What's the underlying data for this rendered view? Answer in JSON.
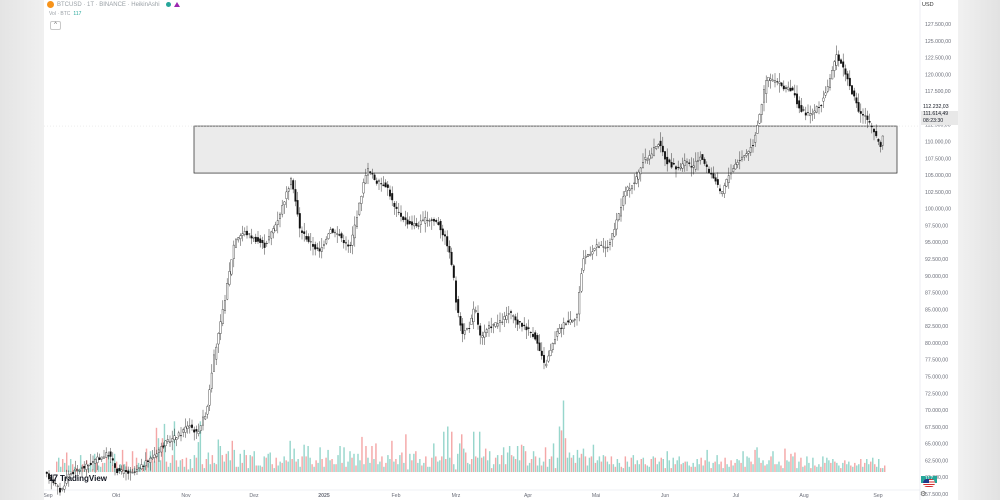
{
  "header": {
    "symbol_line": "BTCUSD · 1T · BINANCE · HeikinAshi",
    "volume_label": "Vol · BTC",
    "volume_value": "117",
    "collapse_glyph": "^"
  },
  "currency": "USD",
  "brand": "TradingView",
  "colors": {
    "up": "#26a69a",
    "down": "#ef5350",
    "candle": "#111111",
    "zone_fill": "#ebebeb",
    "coin": "#f7931a"
  },
  "chart_data": {
    "type": "candlestick",
    "style": "HeikinAshi",
    "timeframe": "1T",
    "symbol": "BTCUSD",
    "exchange": "BINANCE",
    "y_axis": {
      "min": 57500,
      "max": 127500,
      "ticks": [
        127500,
        125000,
        122500,
        120000,
        117500,
        115000,
        112500,
        110000,
        107500,
        105000,
        102500,
        100000,
        97500,
        95000,
        92500,
        90000,
        87500,
        85000,
        82500,
        80000,
        77500,
        75000,
        72500,
        70000,
        67500,
        65000,
        62500,
        60000,
        57500
      ],
      "tick_labels": [
        "127.500,00",
        "125.000,00",
        "122.500,00",
        "120.000,00",
        "117.500,00",
        "115.000,00",
        "112.500,00",
        "110.000,00",
        "107.500,00",
        "105.000,00",
        "102.500,00",
        "100.000,00",
        "97.500,00",
        "95.000,00",
        "92.500,00",
        "90.000,00",
        "87.500,00",
        "85.000,00",
        "82.500,00",
        "80.000,00",
        "77.500,00",
        "75.000,00",
        "72.500,00",
        "70.000,00",
        "67.500,00",
        "65.000,00",
        "62.500,00",
        "60.000,00",
        "57.500,00"
      ]
    },
    "x_axis": {
      "labels": [
        "Sep",
        "Okt",
        "Nov",
        "Dez",
        "2025",
        "Feb",
        "Mrz",
        "Apr",
        "Mai",
        "Jun",
        "Jul",
        "Aug",
        "Sep"
      ]
    },
    "price_labels": {
      "high": "112.232,03",
      "current": "111.614,49",
      "countdown": "08:23:30"
    },
    "zone": {
      "top": 112300,
      "bottom": 105300
    },
    "price_series": [
      [
        0,
        60500
      ],
      [
        8,
        59500
      ],
      [
        16,
        57800
      ],
      [
        24,
        60500
      ],
      [
        40,
        61500
      ],
      [
        56,
        63000
      ],
      [
        64,
        63500
      ],
      [
        72,
        61000
      ],
      [
        88,
        60500
      ],
      [
        104,
        62500
      ],
      [
        120,
        65000
      ],
      [
        136,
        66500
      ],
      [
        144,
        68000
      ],
      [
        152,
        66500
      ],
      [
        162,
        70000
      ],
      [
        168,
        77000
      ],
      [
        176,
        83000
      ],
      [
        184,
        90000
      ],
      [
        190,
        95500
      ],
      [
        200,
        96500
      ],
      [
        210,
        95500
      ],
      [
        220,
        94500
      ],
      [
        232,
        98000
      ],
      [
        240,
        101500
      ],
      [
        247,
        104500
      ],
      [
        255,
        97000
      ],
      [
        265,
        95000
      ],
      [
        275,
        93500
      ],
      [
        285,
        97000
      ],
      [
        295,
        96000
      ],
      [
        305,
        94000
      ],
      [
        315,
        101000
      ],
      [
        322,
        106000
      ],
      [
        332,
        104000
      ],
      [
        342,
        103500
      ],
      [
        350,
        100000
      ],
      [
        362,
        98000
      ],
      [
        372,
        97500
      ],
      [
        382,
        98500
      ],
      [
        393,
        98000
      ],
      [
        402,
        95000
      ],
      [
        408,
        91000
      ],
      [
        412,
        85000
      ],
      [
        418,
        81500
      ],
      [
        425,
        82500
      ],
      [
        430,
        85500
      ],
      [
        436,
        80500
      ],
      [
        445,
        82500
      ],
      [
        455,
        83000
      ],
      [
        465,
        84500
      ],
      [
        472,
        83000
      ],
      [
        480,
        82500
      ],
      [
        490,
        81000
      ],
      [
        500,
        76500
      ],
      [
        505,
        78500
      ],
      [
        512,
        81500
      ],
      [
        520,
        83000
      ],
      [
        532,
        84000
      ],
      [
        538,
        92500
      ],
      [
        545,
        93500
      ],
      [
        553,
        94500
      ],
      [
        562,
        94000
      ],
      [
        570,
        97000
      ],
      [
        580,
        102500
      ],
      [
        590,
        104000
      ],
      [
        598,
        107000
      ],
      [
        606,
        108000
      ],
      [
        613,
        110000
      ],
      [
        622,
        107000
      ],
      [
        632,
        106000
      ],
      [
        642,
        107000
      ],
      [
        648,
        106000
      ],
      [
        656,
        108000
      ],
      [
        662,
        106000
      ],
      [
        670,
        104500
      ],
      [
        676,
        102000
      ],
      [
        684,
        105000
      ],
      [
        692,
        107000
      ],
      [
        700,
        108000
      ],
      [
        708,
        109500
      ],
      [
        716,
        115000
      ],
      [
        722,
        119500
      ],
      [
        730,
        119000
      ],
      [
        740,
        118000
      ],
      [
        748,
        117500
      ],
      [
        756,
        114500
      ],
      [
        766,
        114000
      ],
      [
        776,
        115500
      ],
      [
        786,
        119500
      ],
      [
        792,
        123000
      ],
      [
        800,
        120500
      ],
      [
        808,
        117000
      ],
      [
        814,
        114500
      ],
      [
        822,
        113500
      ],
      [
        830,
        111000
      ],
      [
        836,
        109500
      ],
      [
        840,
        111600
      ]
    ],
    "volume_levels": [
      0.08,
      0.11,
      0.04,
      0.1,
      0.07,
      0.15,
      0.05,
      0.1,
      0.06,
      0.04,
      0.03,
      0.02,
      0.13,
      0.06,
      0.02,
      0.09,
      0.03,
      0.06,
      0.02,
      0.14,
      0.07,
      0.05,
      0.04,
      0.07,
      0.07,
      0.12,
      0.13,
      0.08,
      0.05,
      0.14,
      0.08,
      0.03,
      0.06,
      0.17,
      0.06,
      0.08,
      0.02,
      0.02,
      0.16,
      0.03,
      0.11,
      0.07,
      0.05,
      0.03,
      0.08,
      0.18,
      0.07,
      0.16,
      0.11,
      0.08,
      0.34,
      0.26,
      0.09,
      0.26,
      0.37,
      0.08,
      0.04,
      0.07,
      0.13,
      0.39,
      0.09,
      0.04,
      0.09,
      0.1,
      0.04,
      0.11,
      0.02,
      0.1,
      0.03,
      0.13,
      0.11,
      0.23,
      0.39,
      0.06,
      0.03,
      0.1,
      0.15,
      0.06,
      0.13,
      0.07,
      0.06,
      0.25,
      0.2,
      0.13,
      0.08,
      0.14,
      0.16,
      0.09,
      0.24,
      0.17,
      0.04,
      0.04,
      0.14,
      0.07,
      0.17,
      0.13,
      0.03,
      0.13,
      0.12,
      0.16,
      0.05,
      0.05,
      0.05,
      0.04,
      0.12,
      0.11,
      0.14,
      0.15,
      0.06,
      0.03,
      0.11,
      0.05,
      0.08,
      0.07,
      0.12,
      0.09,
      0.08,
      0.24,
      0.1,
      0.18,
      0.08,
      0.1,
      0.04,
      0.12,
      0.21,
      0.12,
      0.2,
      0.11,
      0.06,
      0.04,
      0.09,
      0.07,
      0.19,
      0.1,
      0.04,
      0.11,
      0.17,
      0.09,
      0.1,
      0.06,
      0.06,
      0.13,
      0.2,
      0.07,
      0.19,
      0.04,
      0.08,
      0.16,
      0.11,
      0.14,
      0.05,
      0.14,
      0.09,
      0.27,
      0.06,
      0.2,
      0.11,
      0.07,
      0.2,
      0.1,
      0.22,
      0.06,
      0.08,
      0.12,
      0.04,
      0.07,
      0.13,
      0.1,
      0.24,
      0.08,
      0.1,
      0.06,
      0.13,
      0.15,
      0.07,
      0.29,
      0.02,
      0.14,
      0.09,
      0.14,
      0.16,
      0.07,
      0.1,
      0.05,
      0.07,
      0.12,
      0.04,
      0.04,
      0.11,
      0.22,
      0.12,
      0.08,
      0.09,
      0.12,
      0.31,
      0.1,
      0.35,
      0.11,
      0.31,
      0.06,
      0.02,
      0.14,
      0.22,
      0.29,
      0.18,
      0.15,
      0.07,
      0.06,
      0.1,
      0.31,
      0.12,
      0.11,
      0.31,
      0.11,
      0.12,
      0.18,
      0.09,
      0.16,
      0.03,
      0.06,
      0.11,
      0.13,
      0.06,
      0.13,
      0.19,
      0.06,
      0.15,
      0.2,
      0.13,
      0.12,
      0.1,
      0.2,
      0.09,
      0.21,
      0.2,
      0.16,
      0.05,
      0.07,
      0.1,
      0.16,
      0.12,
      0.05,
      0.11,
      0.05,
      0.08,
      0.19,
      0.04,
      0.1,
      0.12,
      0.22,
      0.03,
      0.11,
      0.35,
      0.32,
      0.55,
      0.26,
      0.11,
      0.15,
      0.11,
      0.13,
      0.07,
      0.17,
      0.11,
      0.14,
      0.18,
      0.12,
      0.05,
      0.11,
      0.12,
      0.21,
      0.07,
      0.09,
      0.12,
      0.08,
      0.13,
      0.12,
      0.08,
      0.06,
      0.12,
      0.06,
      0.04,
      0.1,
      0.07,
      0.04,
      0.03,
      0.12,
      0.08,
      0.04,
      0.11,
      0.13,
      0.06,
      0.09,
      0.06,
      0.1,
      0.11,
      0.06,
      0.05,
      0.04,
      0.1,
      0.12,
      0.11,
      0.06,
      0.08,
      0.11,
      0.1,
      0.03,
      0.16,
      0.09,
      0.03,
      0.11,
      0.06,
      0.09,
      0.12,
      0.06,
      0.07,
      0.08,
      0.08,
      0.05,
      0.04,
      0.07,
      0.04,
      0.1,
      0.06,
      0.11,
      0.05,
      0.09,
      0.17,
      0.08,
      0.03,
      0.07,
      0.08,
      0.13,
      0.06,
      0.08,
      0.03,
      0.11,
      0.06,
      0.04,
      0.09,
      0.05,
      0.07,
      0.1,
      0.09,
      0.07,
      0.16,
      0.04,
      0.12,
      0.11,
      0.08,
      0.06,
      0.17,
      0.19,
      0.11,
      0.07,
      0.09,
      0.05,
      0.06,
      0.09,
      0.12,
      0.16,
      0.06,
      0.06,
      0.08,
      0.05,
      0.03,
      0.18,
      0.09,
      0.08,
      0.14,
      0.12,
      0.15,
      0.03,
      0.08,
      0.11,
      0.04,
      0.05,
      0.12,
      0.07,
      0.03,
      0.11,
      0.05,
      0.04,
      0.06,
      0.04,
      0.12,
      0.07,
      0.11,
      0.09,
      0.07,
      0.1,
      0.08,
      0.07,
      0.05,
      0.03,
      0.07,
      0.09,
      0.06,
      0.08,
      0.05,
      0.04,
      0.07,
      0.05,
      0.06,
      0.1,
      0.04,
      0.07,
      0.1,
      0.06,
      0.08,
      0.11,
      0.06,
      0.04,
      0.1,
      0.03,
      0.03,
      0.05
    ]
  }
}
